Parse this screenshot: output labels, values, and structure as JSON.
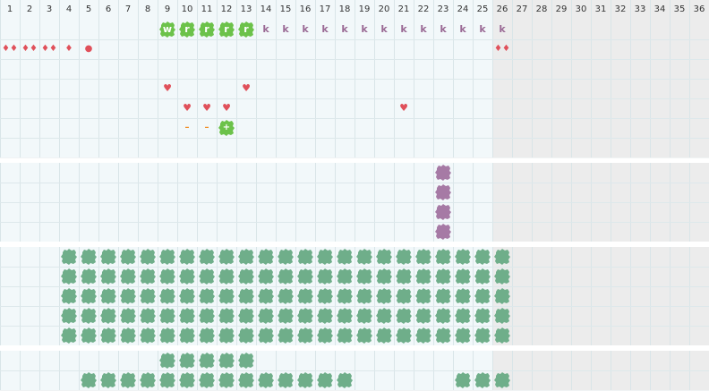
{
  "columns": [
    "1",
    "2",
    "3",
    "4",
    "5",
    "6",
    "7",
    "8",
    "9",
    "10",
    "11",
    "12",
    "13",
    "14",
    "15",
    "16",
    "17",
    "18",
    "19",
    "20",
    "21",
    "22",
    "23",
    "24",
    "25",
    "26",
    "27",
    "28",
    "29",
    "30",
    "31",
    "32",
    "33",
    "34",
    "35",
    "36"
  ],
  "active_columns": 25,
  "colors": {
    "green_bright": "#6cc24a",
    "green_muted": "#6fae8a",
    "purple": "#a67aa5",
    "letter_purple": "#9a6a95",
    "red": "#e0505a",
    "orange": "#f0902a",
    "background": "#f2f8fa",
    "inactive": "#ececec"
  },
  "legend": {
    "blob_green": "green_bright",
    "blob_muted": "green_muted",
    "blob_purple": "purple"
  },
  "band1": {
    "row1": {
      "green_letters": [
        {
          "col": 9,
          "text": "w"
        },
        {
          "col": 10,
          "text": "r"
        },
        {
          "col": 11,
          "text": "r"
        },
        {
          "col": 12,
          "text": "r"
        },
        {
          "col": 13,
          "text": "r"
        }
      ],
      "letters": [
        {
          "col": 14,
          "text": "k"
        },
        {
          "col": 15,
          "text": "k"
        },
        {
          "col": 16,
          "text": "k"
        },
        {
          "col": 17,
          "text": "k"
        },
        {
          "col": 18,
          "text": "k"
        },
        {
          "col": 19,
          "text": "k"
        },
        {
          "col": 20,
          "text": "k"
        },
        {
          "col": 21,
          "text": "k"
        },
        {
          "col": 22,
          "text": "k"
        },
        {
          "col": 23,
          "text": "k"
        },
        {
          "col": 24,
          "text": "k"
        },
        {
          "col": 25,
          "text": "k"
        },
        {
          "col": 26,
          "text": "k"
        }
      ]
    },
    "row2_drops": [
      {
        "col": 1,
        "text": "♦♦"
      },
      {
        "col": 2,
        "text": "♦♦"
      },
      {
        "col": 3,
        "text": "♦♦"
      },
      {
        "col": 4,
        "text": "♦"
      },
      {
        "col": 5,
        "text": "●"
      },
      {
        "col": 26,
        "text": "♦♦"
      }
    ],
    "hearts": [
      {
        "col": 9,
        "row": 4
      },
      {
        "col": 13,
        "row": 4
      },
      {
        "col": 10,
        "row": 5
      },
      {
        "col": 11,
        "row": 5
      },
      {
        "col": 12,
        "row": 5
      },
      {
        "col": 21,
        "row": 5
      }
    ],
    "row6": [
      {
        "col": 10,
        "text": "–",
        "kind": "orange"
      },
      {
        "col": 11,
        "text": "–",
        "kind": "orange"
      },
      {
        "col": 12,
        "text": "+",
        "kind": "green"
      }
    ]
  },
  "band2": {
    "purple_blobs": [
      {
        "col": 23,
        "row": 1
      },
      {
        "col": 23,
        "row": 2
      },
      {
        "col": 23,
        "row": 3
      },
      {
        "col": 23,
        "row": 4
      }
    ]
  },
  "band3": {
    "rows": 5,
    "col_from": 4,
    "col_to": 26
  },
  "band4": {
    "row1": {
      "from": 9,
      "to": 13
    },
    "row2": [
      {
        "from": 5,
        "to": 18
      },
      {
        "from": 24,
        "to": 26
      }
    ]
  }
}
